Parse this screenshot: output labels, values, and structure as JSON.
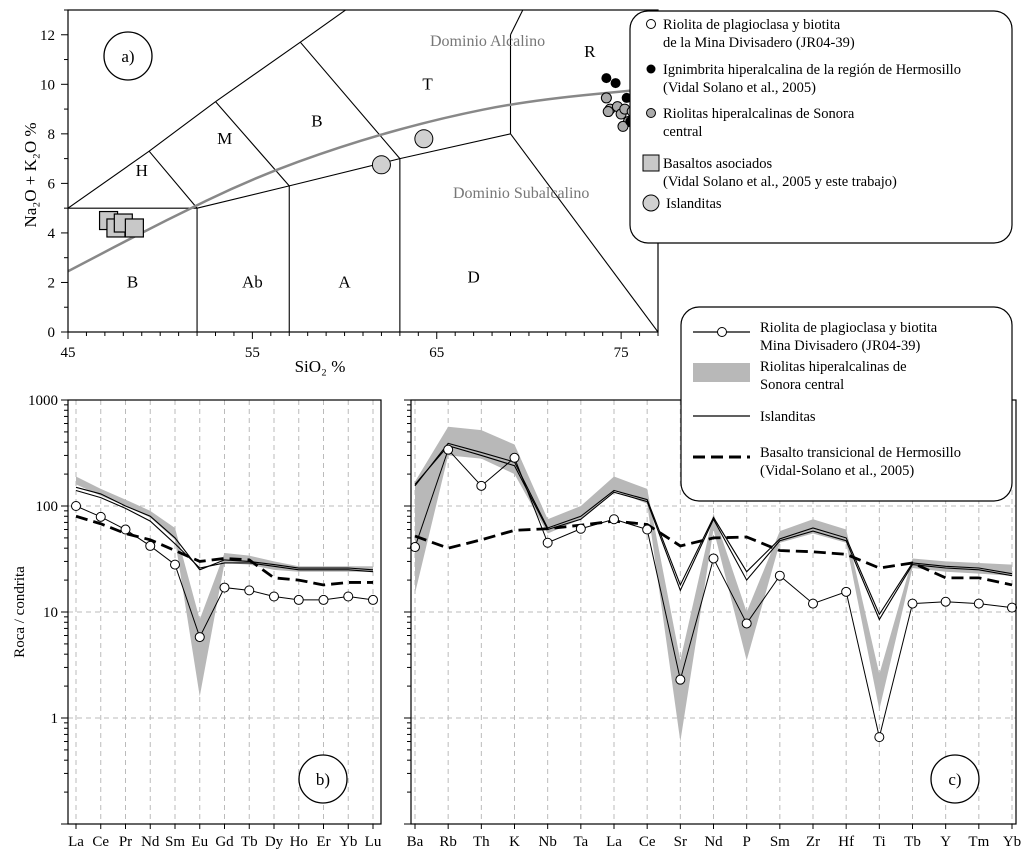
{
  "chart_data": [
    {
      "id": "a",
      "type": "scatter",
      "panel_label": "a)",
      "xlabel": "SiO₂ %",
      "ylabel": "Na₂O + K₂O %",
      "xlim": [
        45,
        77
      ],
      "ylim": [
        0,
        13
      ],
      "x_ticks": [
        "45",
        "55",
        "65",
        "75"
      ],
      "y_ticks": [
        "0",
        "2",
        "4",
        "6",
        "8",
        "10",
        "12"
      ],
      "field_labels": [
        "H",
        "M",
        "B",
        "T",
        "R",
        "B",
        "Ab",
        "A",
        "D"
      ],
      "region_labels": [
        "Dominio Alcalino",
        "Dominio Subalcalino"
      ],
      "legend": [
        {
          "line1": "Riolita de plagioclasa y biotita",
          "line2": "de la Mina Divisadero (JR04-39)"
        },
        {
          "line1": "Ignimbrita hiperalcalina de la región de Hermosillo",
          "line2": "(Vidal Solano et al., 2005)"
        },
        {
          "line1": "Riolitas hiperalcalinas de Sonora",
          "line2": "central"
        },
        {
          "line1": "Basaltos asociados",
          "line2": "(Vidal Solano et al., 2005 y este trabajo)"
        },
        {
          "line1": "Islanditas",
          "line2": ""
        }
      ],
      "series": [
        {
          "name": "Riolita de plagioclasa y biotita de la Mina Divisadero (JR04-39)",
          "points": [
            [
              76.1,
              8.7
            ]
          ]
        },
        {
          "name": "Ignimbrita hiperalcalina de la región de Hermosillo",
          "points": [
            [
              74.2,
              10.25
            ],
            [
              74.7,
              10.05
            ],
            [
              75.3,
              9.45
            ],
            [
              75.5,
              8.5
            ],
            [
              76.0,
              8.55
            ],
            [
              76.4,
              8.7
            ],
            [
              75.8,
              8.45
            ]
          ]
        },
        {
          "name": "Riolitas hiperalcalinas de Sonora central",
          "points": [
            [
              74.2,
              9.45
            ],
            [
              74.4,
              9.0
            ],
            [
              74.3,
              8.9
            ],
            [
              74.8,
              9.1
            ],
            [
              75.0,
              8.8
            ],
            [
              75.2,
              9.0
            ],
            [
              75.4,
              8.5
            ],
            [
              75.6,
              8.9
            ],
            [
              75.9,
              9.2
            ],
            [
              76.2,
              8.9
            ],
            [
              76.4,
              8.6
            ],
            [
              76.6,
              8.4
            ],
            [
              76.8,
              8.2
            ],
            [
              77.1,
              7.9
            ],
            [
              76.9,
              8.4
            ],
            [
              75.8,
              6.85
            ],
            [
              75.1,
              8.3
            ],
            [
              76.0,
              8.1
            ]
          ]
        },
        {
          "name": "Basaltos asociados",
          "points": [
            [
              47.2,
              4.5
            ],
            [
              47.6,
              4.2
            ],
            [
              48.0,
              4.4
            ],
            [
              48.6,
              4.2
            ]
          ]
        },
        {
          "name": "Islanditas",
          "points": [
            [
              62.0,
              6.75
            ],
            [
              64.3,
              7.8
            ]
          ]
        }
      ],
      "curve": [
        [
          45,
          2.45
        ],
        [
          50,
          4.4
        ],
        [
          55,
          6.2
        ],
        [
          60,
          7.55
        ],
        [
          65,
          8.6
        ],
        [
          70,
          9.35
        ],
        [
          77,
          9.85
        ]
      ]
    },
    {
      "id": "b",
      "type": "line",
      "panel_label": "b)",
      "ylabel": "Roca / condrita",
      "yscale": "log",
      "ylim": [
        0.1,
        1000
      ],
      "y_ticks": [
        "1",
        "10",
        "100",
        "1000"
      ],
      "categories": [
        "La",
        "Ce",
        "Pr",
        "Nd",
        "Sm",
        "Eu",
        "Gd",
        "Tb",
        "Dy",
        "Ho",
        "Er",
        "Yb",
        "Lu"
      ],
      "band": {
        "upper": [
          190,
          145,
          115,
          90,
          62,
          8.5,
          36,
          34,
          30,
          27,
          27,
          27,
          27
        ],
        "lower": [
          160,
          125,
          100,
          78,
          48,
          1.6,
          29,
          28,
          25,
          24,
          24,
          24,
          24
        ]
      },
      "series": [
        {
          "values": [
            100,
            79,
            60,
            42,
            28,
            5.8,
            17,
            16,
            14,
            13,
            13,
            14,
            13
          ]
        },
        {
          "values": [
            140,
            120,
            95,
            72,
            44,
            26,
            29,
            29,
            27,
            25,
            25,
            25,
            24
          ]
        },
        {
          "values": [
            150,
            130,
            100,
            80,
            50,
            25,
            31,
            30,
            28,
            26,
            26,
            26,
            25
          ]
        },
        {
          "values": [
            80,
            68,
            55,
            48,
            38,
            30,
            32,
            31,
            21,
            20,
            18,
            19,
            19
          ]
        }
      ]
    },
    {
      "id": "c",
      "type": "line",
      "panel_label": "c)",
      "yscale": "log",
      "ylim": [
        0.1,
        1000
      ],
      "categories": [
        "Ba",
        "Rb",
        "Th",
        "K",
        "Nb",
        "Ta",
        "La",
        "Ce",
        "Sr",
        "Nd",
        "P",
        "Sm",
        "Zr",
        "Hf",
        "Ti",
        "Tb",
        "Y",
        "Tm",
        "Yb"
      ],
      "legend": [
        {
          "line1": "Riolita de plagioclasa y biotita",
          "line2": "Mina Divisadero (JR04-39)"
        },
        {
          "line1": "Riolitas hiperalcalinas de",
          "line2": "Sonora central"
        },
        {
          "line1": "Islanditas",
          "line2": ""
        },
        {
          "line1": "Basalto transicional de Hermosillo",
          "line2": "(Vidal-Solano et al., 2005)"
        }
      ],
      "band": {
        "upper": [
          170,
          560,
          520,
          380,
          75,
          100,
          190,
          145,
          3.5,
          85,
          10,
          58,
          75,
          60,
          2.6,
          32,
          30,
          29,
          28
        ],
        "lower": [
          15,
          300,
          280,
          200,
          55,
          75,
          140,
          105,
          0.6,
          60,
          3.5,
          45,
          55,
          45,
          1.2,
          26,
          24,
          23,
          22
        ]
      },
      "series": [
        {
          "values": [
            41,
            340,
            155,
            285,
            45,
            61,
            75,
            60,
            2.3,
            32,
            7.8,
            22,
            12,
            15.5,
            0.66,
            12,
            12.5,
            12,
            11
          ]
        },
        {
          "values": [
            160,
            370,
            300,
            240,
            60,
            75,
            135,
            110,
            16,
            75,
            20,
            47,
            58,
            47,
            8.5,
            28,
            26,
            25,
            22
          ]
        },
        {
          "values": [
            155,
            390,
            320,
            260,
            62,
            80,
            140,
            115,
            18,
            78,
            24,
            49,
            62,
            50,
            9.5,
            29,
            27,
            26,
            23
          ]
        },
        {
          "values": [
            52,
            40,
            48,
            59,
            61,
            66,
            72,
            67,
            42,
            50,
            51,
            38,
            37,
            35,
            26,
            29,
            21,
            21,
            18
          ]
        }
      ]
    }
  ]
}
